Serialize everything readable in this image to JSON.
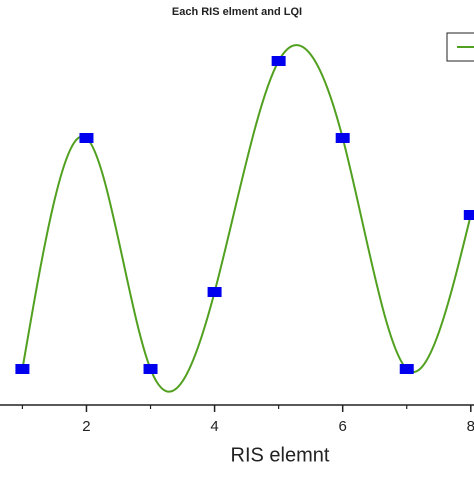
{
  "chart_data": {
    "type": "line",
    "title": "Each RIS elment and LQI",
    "x_label": "RIS elemnt",
    "x": [
      1,
      2,
      3,
      4,
      5,
      6,
      7,
      8
    ],
    "series": [
      {
        "color": "#52a020",
        "marker_color": "#0000ee",
        "values": [
          1,
          4,
          1,
          2,
          5,
          4,
          1,
          3
        ]
      }
    ],
    "xlim": [
      0.65,
      8.05
    ],
    "xticks": [
      2,
      4,
      6,
      8
    ],
    "xminor": [
      1,
      3,
      5,
      7
    ],
    "ylim": [
      0.5,
      5.5
    ],
    "smooth": true,
    "legend": "upper right"
  }
}
